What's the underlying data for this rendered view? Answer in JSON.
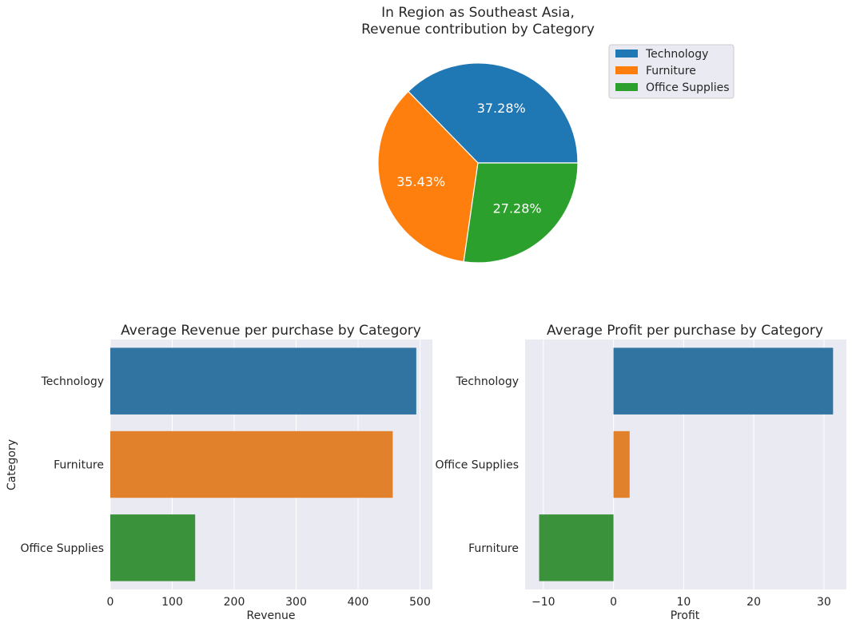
{
  "chart_data": [
    {
      "type": "pie",
      "title_line1": "In Region as Southeast Asia,",
      "title_line2": "Revenue contribution by Category",
      "slices": [
        {
          "label": "Technology",
          "value": 37.28,
          "pct_label": "37.28%",
          "color": "#1f77b4"
        },
        {
          "label": "Furniture",
          "value": 35.43,
          "pct_label": "35.43%",
          "color": "#ff7f0e"
        },
        {
          "label": "Office Supplies",
          "value": 27.28,
          "pct_label": "27.28%",
          "color": "#2ca02c"
        }
      ],
      "legend": [
        "Technology",
        "Furniture",
        "Office Supplies"
      ],
      "legend_position": "upper-right"
    },
    {
      "type": "bar",
      "orientation": "horizontal",
      "title": "Average Revenue per purchase by Category",
      "xlabel": "Revenue",
      "ylabel": "Category",
      "categories": [
        "Technology",
        "Furniture",
        "Office Supplies"
      ],
      "values": [
        494,
        456,
        137
      ],
      "colors": [
        "#3274a1",
        "#e1812c",
        "#3a923a"
      ],
      "xlim": [
        0,
        520
      ],
      "xticks": [
        0,
        100,
        200,
        300,
        400,
        500
      ],
      "xtick_labels": [
        "0",
        "100",
        "200",
        "300",
        "400",
        "500"
      ],
      "grid": true
    },
    {
      "type": "bar",
      "orientation": "horizontal",
      "title": "Average Profit per purchase by Category",
      "xlabel": "Profit",
      "ylabel": "",
      "categories": [
        "Technology",
        "Office Supplies",
        "Furniture"
      ],
      "values": [
        31.3,
        2.3,
        -10.6
      ],
      "colors": [
        "#3274a1",
        "#e1812c",
        "#3a923a"
      ],
      "xlim": [
        -12.6,
        33.2
      ],
      "xticks": [
        -10,
        0,
        10,
        20,
        30
      ],
      "xtick_labels": [
        "−10",
        "0",
        "10",
        "20",
        "30"
      ],
      "grid": true
    }
  ]
}
